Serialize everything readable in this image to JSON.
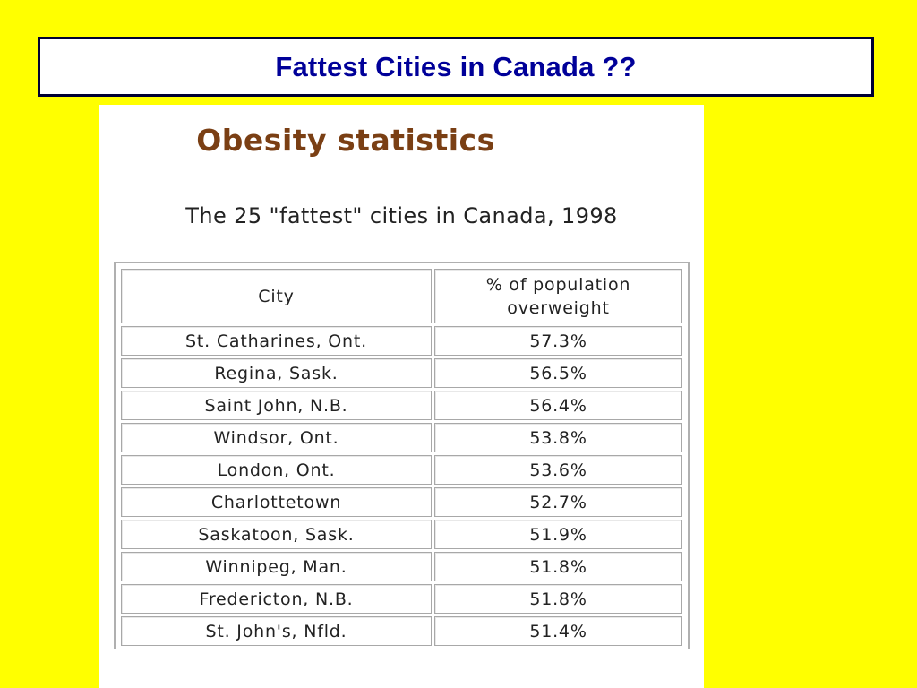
{
  "slide": {
    "title": "Fattest Cities in Canada ??"
  },
  "panel": {
    "heading": "Obesity statistics",
    "subheading": "The 25 \"fattest\" cities in Canada, 1998"
  },
  "table": {
    "headers": {
      "city": "City",
      "percent_line1": "% of population",
      "percent_line2": "overweight"
    },
    "rows": [
      {
        "city": "St. Catharines, Ont.",
        "percent": "57.3%"
      },
      {
        "city": "Regina, Sask.",
        "percent": "56.5%"
      },
      {
        "city": "Saint John, N.B.",
        "percent": "56.4%"
      },
      {
        "city": "Windsor, Ont.",
        "percent": "53.8%"
      },
      {
        "city": "London, Ont.",
        "percent": "53.6%"
      },
      {
        "city": "Charlottetown",
        "percent": "52.7%"
      },
      {
        "city": "Saskatoon, Sask.",
        "percent": "51.9%"
      },
      {
        "city": "Winnipeg, Man.",
        "percent": "51.8%"
      },
      {
        "city": "Fredericton, N.B.",
        "percent": "51.8%"
      },
      {
        "city": "St. John's, Nfld.",
        "percent": "51.4%"
      }
    ]
  },
  "colors": {
    "background": "#ffff00",
    "title_text": "#000099",
    "title_border": "#000033",
    "heading_text": "#7a3f14"
  }
}
